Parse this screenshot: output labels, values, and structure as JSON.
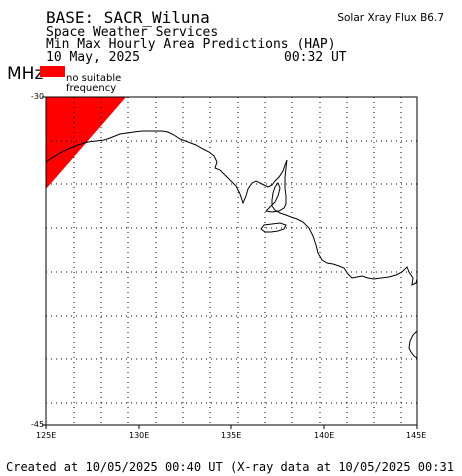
{
  "header": {
    "base_line": "BASE: SACR_Wiluna",
    "service": "Space Weather Services",
    "product": "Min Max Hourly Area Predictions (HAP)",
    "date": "10 May, 2025",
    "time": "00:32 UT",
    "flux": "Solar Xray Flux B6.7"
  },
  "legend": {
    "unit": "MHz",
    "swatch_color": "#ff0000",
    "swatch_label_line1": "no suitable",
    "swatch_label_line2": "frequency"
  },
  "map": {
    "lat_labels": [
      "-30",
      "-45"
    ],
    "lon_labels": [
      "125E",
      "130E",
      "135E",
      "140E",
      "145E"
    ],
    "lon_range": [
      125,
      145
    ],
    "lat_range": [
      -30,
      -45
    ],
    "grid": "dotted"
  },
  "footer": {
    "created": "Created at 10/05/2025 00:40 UT (X-ray data at 10/05/2025 00:31 UT)"
  }
}
